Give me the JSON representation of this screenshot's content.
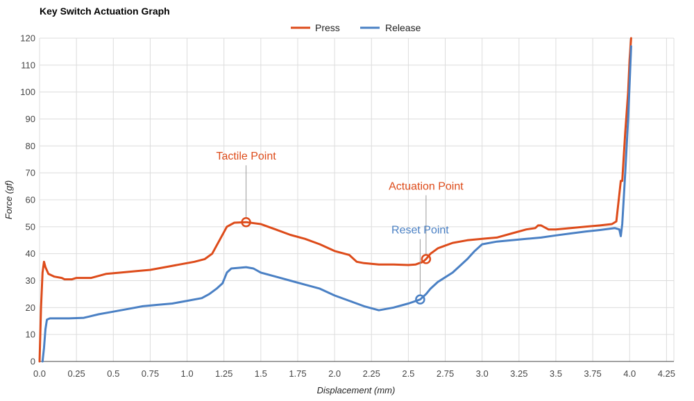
{
  "chart_data": {
    "type": "line",
    "title": "Key Switch Actuation Graph",
    "xlabel": "Displacement (mm)",
    "ylabel": "Force (gf)",
    "xlim": [
      0,
      4.3
    ],
    "ylim": [
      0,
      120
    ],
    "x_ticks": [
      0,
      0.25,
      0.5,
      0.75,
      1.0,
      1.25,
      1.5,
      1.75,
      2.0,
      2.25,
      2.5,
      2.75,
      3.0,
      3.25,
      3.5,
      3.75,
      4.0,
      4.25
    ],
    "x_tick_labels": [
      "0.0",
      "0.25",
      "0.5",
      "0.75",
      "1.0",
      "1.25",
      "1.5",
      "1.75",
      "2.0",
      "2.25",
      "2.5",
      "2.75",
      "3.0",
      "3.25",
      "3.5",
      "3.75",
      "4.0",
      "4.25"
    ],
    "y_ticks": [
      0,
      10,
      20,
      30,
      40,
      50,
      60,
      70,
      80,
      90,
      100,
      110,
      120
    ],
    "grid": true,
    "legend_position": "top-center",
    "series": [
      {
        "name": "Press",
        "color": "#dd4b1a",
        "points": [
          [
            0,
            0
          ],
          [
            0.01,
            20
          ],
          [
            0.02,
            33
          ],
          [
            0.03,
            37
          ],
          [
            0.04,
            35
          ],
          [
            0.06,
            32.5
          ],
          [
            0.1,
            31.5
          ],
          [
            0.15,
            31
          ],
          [
            0.17,
            30.5
          ],
          [
            0.22,
            30.5
          ],
          [
            0.25,
            31
          ],
          [
            0.35,
            31
          ],
          [
            0.45,
            32.5
          ],
          [
            0.55,
            33
          ],
          [
            0.65,
            33.5
          ],
          [
            0.75,
            34
          ],
          [
            0.85,
            35
          ],
          [
            0.95,
            36
          ],
          [
            1.05,
            37
          ],
          [
            1.12,
            38
          ],
          [
            1.17,
            40
          ],
          [
            1.22,
            45
          ],
          [
            1.27,
            50
          ],
          [
            1.32,
            51.5
          ],
          [
            1.4,
            51.7
          ],
          [
            1.5,
            51
          ],
          [
            1.6,
            49
          ],
          [
            1.7,
            47
          ],
          [
            1.8,
            45.5
          ],
          [
            1.9,
            43.5
          ],
          [
            2.0,
            41
          ],
          [
            2.1,
            39.5
          ],
          [
            2.15,
            37
          ],
          [
            2.2,
            36.5
          ],
          [
            2.3,
            36
          ],
          [
            2.4,
            36
          ],
          [
            2.5,
            35.8
          ],
          [
            2.55,
            36
          ],
          [
            2.6,
            37
          ],
          [
            2.62,
            38
          ],
          [
            2.65,
            40
          ],
          [
            2.7,
            42
          ],
          [
            2.8,
            44
          ],
          [
            2.9,
            45
          ],
          [
            3.0,
            45.5
          ],
          [
            3.1,
            46
          ],
          [
            3.2,
            47.5
          ],
          [
            3.3,
            49
          ],
          [
            3.36,
            49.5
          ],
          [
            3.38,
            50.5
          ],
          [
            3.4,
            50.5
          ],
          [
            3.45,
            49
          ],
          [
            3.5,
            49
          ],
          [
            3.6,
            49.5
          ],
          [
            3.7,
            50
          ],
          [
            3.8,
            50.5
          ],
          [
            3.88,
            51
          ],
          [
            3.91,
            52
          ],
          [
            3.93,
            62
          ],
          [
            3.94,
            67
          ],
          [
            3.95,
            67
          ],
          [
            3.97,
            85
          ],
          [
            3.99,
            100
          ],
          [
            4.0,
            112
          ],
          [
            4.01,
            120
          ]
        ]
      },
      {
        "name": "Release",
        "color": "#4a80c4",
        "points": [
          [
            0.02,
            0
          ],
          [
            0.03,
            5
          ],
          [
            0.04,
            12
          ],
          [
            0.05,
            15.5
          ],
          [
            0.07,
            16
          ],
          [
            0.12,
            16
          ],
          [
            0.2,
            16
          ],
          [
            0.3,
            16.2
          ],
          [
            0.4,
            17.5
          ],
          [
            0.5,
            18.5
          ],
          [
            0.6,
            19.5
          ],
          [
            0.7,
            20.5
          ],
          [
            0.8,
            21
          ],
          [
            0.9,
            21.5
          ],
          [
            1.0,
            22.5
          ],
          [
            1.1,
            23.5
          ],
          [
            1.15,
            25
          ],
          [
            1.2,
            27
          ],
          [
            1.24,
            29
          ],
          [
            1.27,
            33
          ],
          [
            1.3,
            34.5
          ],
          [
            1.4,
            35
          ],
          [
            1.45,
            34.5
          ],
          [
            1.5,
            33
          ],
          [
            1.6,
            31.5
          ],
          [
            1.7,
            30
          ],
          [
            1.8,
            28.5
          ],
          [
            1.9,
            27
          ],
          [
            2.0,
            24.5
          ],
          [
            2.1,
            22.5
          ],
          [
            2.2,
            20.5
          ],
          [
            2.3,
            19
          ],
          [
            2.4,
            20
          ],
          [
            2.5,
            21.5
          ],
          [
            2.58,
            23
          ],
          [
            2.62,
            25
          ],
          [
            2.65,
            27
          ],
          [
            2.7,
            29.5
          ],
          [
            2.8,
            33
          ],
          [
            2.9,
            38
          ],
          [
            2.95,
            41
          ],
          [
            3.0,
            43.5
          ],
          [
            3.1,
            44.5
          ],
          [
            3.2,
            45
          ],
          [
            3.3,
            45.5
          ],
          [
            3.4,
            46
          ],
          [
            3.5,
            46.8
          ],
          [
            3.6,
            47.5
          ],
          [
            3.7,
            48.2
          ],
          [
            3.8,
            48.8
          ],
          [
            3.9,
            49.5
          ],
          [
            3.93,
            49
          ],
          [
            3.94,
            46.5
          ],
          [
            3.95,
            51
          ],
          [
            3.97,
            70
          ],
          [
            3.99,
            90
          ],
          [
            4.0,
            103
          ],
          [
            4.01,
            117
          ]
        ]
      }
    ],
    "annotations": [
      {
        "label": "Tactile Point",
        "series": "Press",
        "x": 1.4,
        "y": 51.7,
        "color": "#dd4b1a"
      },
      {
        "label": "Actuation Point",
        "series": "Press",
        "x": 2.62,
        "y": 38,
        "color": "#dd4b1a"
      },
      {
        "label": "Reset Point",
        "series": "Release",
        "x": 2.58,
        "y": 23,
        "color": "#4a80c4"
      }
    ]
  }
}
